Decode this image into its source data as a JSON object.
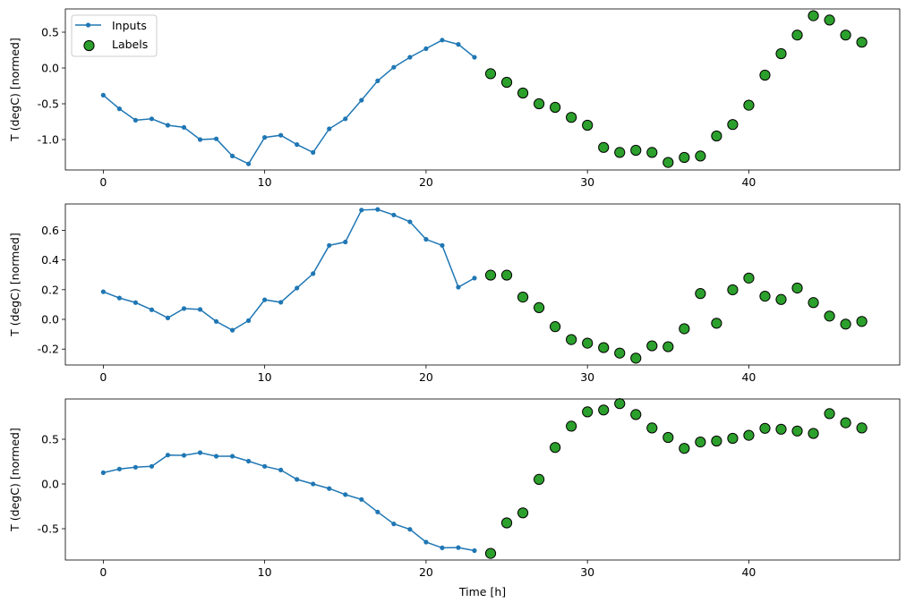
{
  "chart_data": [
    {
      "type": "line+scatter",
      "ylabel": "T (degC) [normed]",
      "xlabel": "",
      "xlim": [
        -2.35,
        49.35
      ],
      "ylim": [
        -1.425,
        0.825
      ],
      "xticks": [
        "0",
        "10",
        "20",
        "30",
        "40"
      ],
      "yticks": [
        "-1.0",
        "-0.5",
        "0.0",
        "0.5"
      ],
      "legend": {
        "position": "upper-left",
        "entries": [
          "Inputs",
          "Labels"
        ]
      },
      "series": [
        {
          "name": "Inputs",
          "kind": "line",
          "color": "#1f77b4",
          "x_start": 0,
          "values": [
            -0.38,
            -0.57,
            -0.73,
            -0.71,
            -0.8,
            -0.83,
            -1.0,
            -0.99,
            -1.23,
            -1.34,
            -0.97,
            -0.94,
            -1.07,
            -1.18,
            -0.85,
            -0.71,
            -0.45,
            -0.18,
            0.01,
            0.15,
            0.27,
            0.39,
            0.33,
            0.15
          ]
        },
        {
          "name": "Labels",
          "kind": "scatter",
          "color": "#2ca02c",
          "x_start": 24,
          "values": [
            -0.08,
            -0.2,
            -0.35,
            -0.5,
            -0.55,
            -0.69,
            -0.8,
            -1.11,
            -1.18,
            -1.15,
            -1.18,
            -1.32,
            -1.25,
            -1.23,
            -0.95,
            -0.79,
            -0.52,
            -0.1,
            0.2,
            0.46,
            0.73,
            0.67,
            0.46,
            0.36
          ]
        }
      ]
    },
    {
      "type": "line+scatter",
      "ylabel": "T (degC) [normed]",
      "xlabel": "",
      "xlim": [
        -2.35,
        49.35
      ],
      "ylim": [
        -0.307,
        0.777
      ],
      "xticks": [
        "0",
        "10",
        "20",
        "30",
        "40"
      ],
      "yticks": [
        "-0.2",
        "0.0",
        "0.2",
        "0.4",
        "0.6"
      ],
      "series": [
        {
          "name": "Inputs",
          "kind": "line",
          "color": "#1f77b4",
          "x_start": 0,
          "values": [
            0.186,
            0.144,
            0.113,
            0.065,
            0.01,
            0.073,
            0.067,
            -0.014,
            -0.073,
            -0.008,
            0.132,
            0.115,
            0.211,
            0.308,
            0.498,
            0.521,
            0.736,
            0.74,
            0.703,
            0.657,
            0.539,
            0.498,
            0.217,
            0.278
          ]
        },
        {
          "name": "Labels",
          "kind": "scatter",
          "color": "#2ca02c",
          "x_start": 24,
          "values": [
            0.298,
            0.298,
            0.15,
            0.079,
            -0.049,
            -0.136,
            -0.16,
            -0.19,
            -0.227,
            -0.261,
            -0.178,
            -0.184,
            -0.063,
            0.174,
            -0.026,
            0.199,
            0.278,
            0.156,
            0.134,
            0.211,
            0.113,
            0.022,
            -0.032,
            -0.014
          ]
        }
      ]
    },
    {
      "type": "line+scatter",
      "ylabel": "T (degC) [normed]",
      "xlabel": "Time [h]",
      "xlim": [
        -2.35,
        49.35
      ],
      "ylim": [
        -0.85,
        0.95
      ],
      "xticks": [
        "0",
        "10",
        "20",
        "30",
        "40"
      ],
      "yticks": [
        "-0.5",
        "0.0",
        "0.5"
      ],
      "series": [
        {
          "name": "Inputs",
          "kind": "line",
          "color": "#1f77b4",
          "x_start": 0,
          "values": [
            0.126,
            0.167,
            0.187,
            0.197,
            0.323,
            0.32,
            0.35,
            0.31,
            0.31,
            0.255,
            0.197,
            0.156,
            0.051,
            0.0,
            -0.051,
            -0.119,
            -0.173,
            -0.313,
            -0.446,
            -0.507,
            -0.65,
            -0.714,
            -0.711,
            -0.745
          ]
        },
        {
          "name": "Labels",
          "kind": "scatter",
          "color": "#2ca02c",
          "x_start": 24,
          "values": [
            -0.776,
            -0.435,
            -0.323,
            0.051,
            0.408,
            0.646,
            0.806,
            0.827,
            0.898,
            0.776,
            0.626,
            0.52,
            0.398,
            0.469,
            0.48,
            0.51,
            0.544,
            0.622,
            0.612,
            0.592,
            0.565,
            0.786,
            0.684,
            0.626
          ]
        }
      ]
    }
  ]
}
